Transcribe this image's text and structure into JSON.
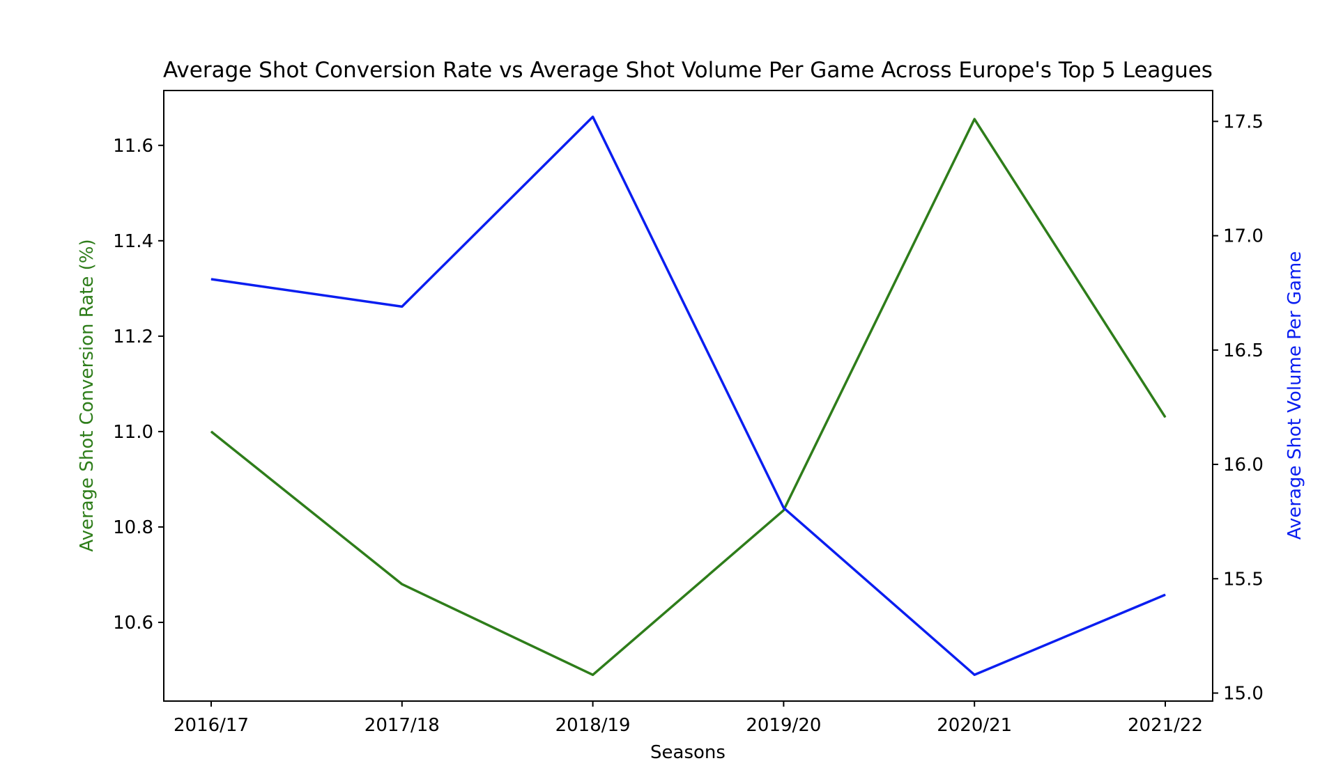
{
  "chart_data": {
    "type": "line",
    "title": "Average Shot Conversion Rate vs Average Shot Volume Per Game Across Europe's Top 5 Leagues",
    "xlabel": "Seasons",
    "categories": [
      "2016/17",
      "2017/18",
      "2018/19",
      "2019/20",
      "2020/21",
      "2021/22"
    ],
    "axes": {
      "left": {
        "label": "Average Shot Conversion Rate (%)",
        "color": "#2e7d1a",
        "ylim": [
          10.435,
          11.715
        ],
        "ticks": [
          10.6,
          10.8,
          11.0,
          11.2,
          11.4,
          11.6
        ],
        "tick_labels": [
          "10.6",
          "10.8",
          "11.0",
          "11.2",
          "11.4",
          "11.6"
        ]
      },
      "right": {
        "label": "Average Shot Volume Per Game",
        "color": "#0a1ef0",
        "ylim": [
          14.965,
          17.635
        ],
        "ticks": [
          15.0,
          15.5,
          16.0,
          16.5,
          17.0,
          17.5
        ],
        "tick_labels": [
          "15.0",
          "15.5",
          "16.0",
          "16.5",
          "17.0",
          "17.5"
        ]
      }
    },
    "series": [
      {
        "axis": "left",
        "color": "#2e7d1a",
        "values": [
          11.0,
          10.68,
          10.49,
          10.835,
          11.655,
          11.03
        ]
      },
      {
        "axis": "right",
        "color": "#0a1ef0",
        "values": [
          16.81,
          16.69,
          17.52,
          15.81,
          15.08,
          15.43
        ]
      }
    ],
    "grid": false,
    "legend": "none"
  }
}
